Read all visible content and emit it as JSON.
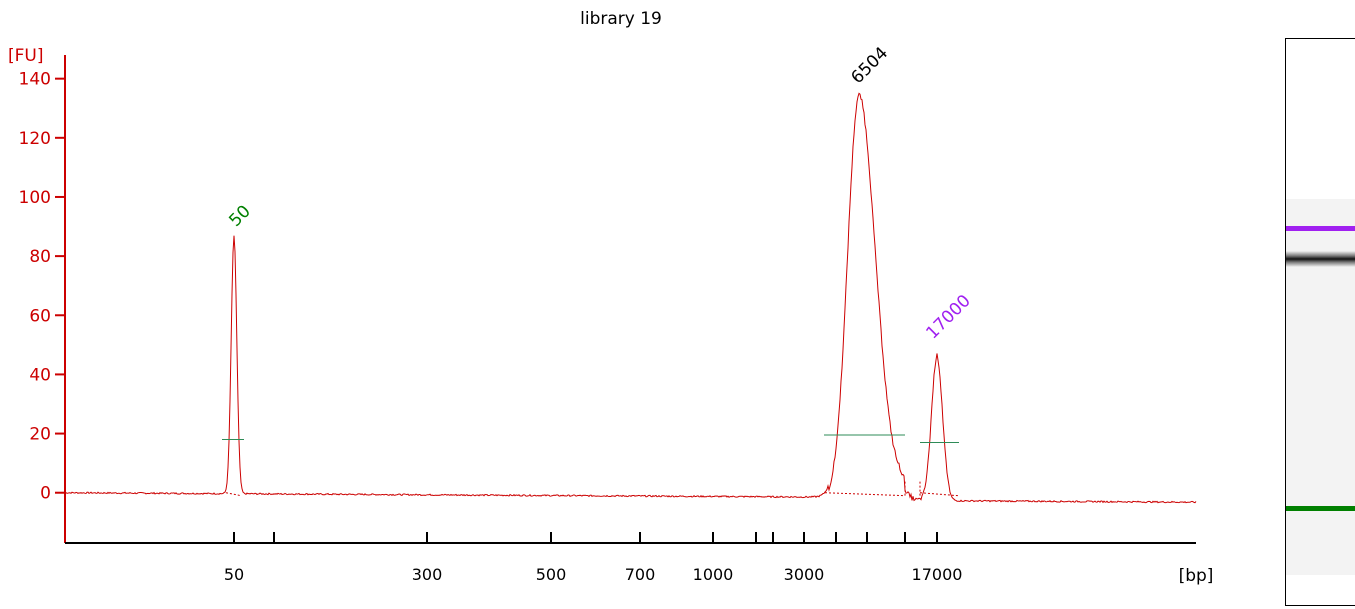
{
  "chart_data": {
    "type": "line",
    "title": "library 19",
    "ylabel": "[FU]",
    "xlabel": "[bp]",
    "ylim": [
      -17,
      148
    ],
    "yticks": [
      0,
      20,
      40,
      60,
      80,
      100,
      120,
      140
    ],
    "x_tick_labels": [
      "50",
      "300",
      "500",
      "700",
      "1000",
      "3000",
      "17000"
    ],
    "x_tick_marks": [
      "50",
      "100",
      "300",
      "500",
      "700",
      "1000",
      "1500",
      "2000",
      "3000",
      "5000",
      "7000",
      "10000",
      "17000"
    ],
    "x_scale": "nonlinear",
    "series": [
      {
        "color": "#cc0000",
        "peaks": [
          {
            "bp": 50,
            "height": 87,
            "width_bp": 0.7,
            "base_bp": 49.6,
            "half_height": 18,
            "label": "50",
            "label_color": "#008000"
          },
          {
            "bp": 6504,
            "height": 136,
            "width_bp": 0.2,
            "base_bp": 6504,
            "half_height": 19.5,
            "label": "6504",
            "label_color": "#000000"
          },
          {
            "bp": 17000,
            "height": 49,
            "width_bp": 0.12,
            "base_bp": 17000,
            "half_height": 17,
            "label": "17000",
            "label_color": "#a020f0"
          }
        ]
      }
    ],
    "annotations": [
      "50",
      "6504",
      "17000"
    ],
    "grid": false,
    "legend": "none"
  },
  "gel": {
    "bands": [
      {
        "name": "upper-marker",
        "color": "#a020f0"
      },
      {
        "name": "sample",
        "color": "#111111"
      },
      {
        "name": "lower-marker",
        "color": "#008000"
      }
    ]
  }
}
